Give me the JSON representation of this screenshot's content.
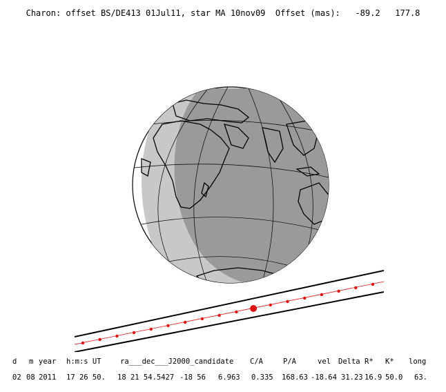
{
  "title": {
    "object": "Charon: offset BS/DE413 01Jul11, star MA 10nov09",
    "offset_label": "Offset (mas):",
    "offset_x": "-89.2",
    "offset_y": "177.8"
  },
  "map": {
    "globe_fill_dark": "#9a9a9a",
    "globe_fill_light": "#c8c8c8",
    "path_band_color": "#000000",
    "path_dot_color": "#dd1111",
    "center_dot_label": "closest approach",
    "num_path_dots": 18
  },
  "table": {
    "headers": [
      "d",
      "m",
      "year",
      "h:m:s UT",
      "ra___dec___J2000_candidate",
      "C/A",
      "P/A",
      "vel",
      "Delta",
      "R*",
      "K*",
      "long"
    ],
    "values": [
      "02",
      "08",
      "2011",
      "17 26 50.",
      "18 21 54.5427",
      "-18 56",
      "6.963",
      "0.335",
      "168.63",
      "-18.64",
      "31.23",
      "16.9",
      "50.0",
      "63."
    ]
  }
}
